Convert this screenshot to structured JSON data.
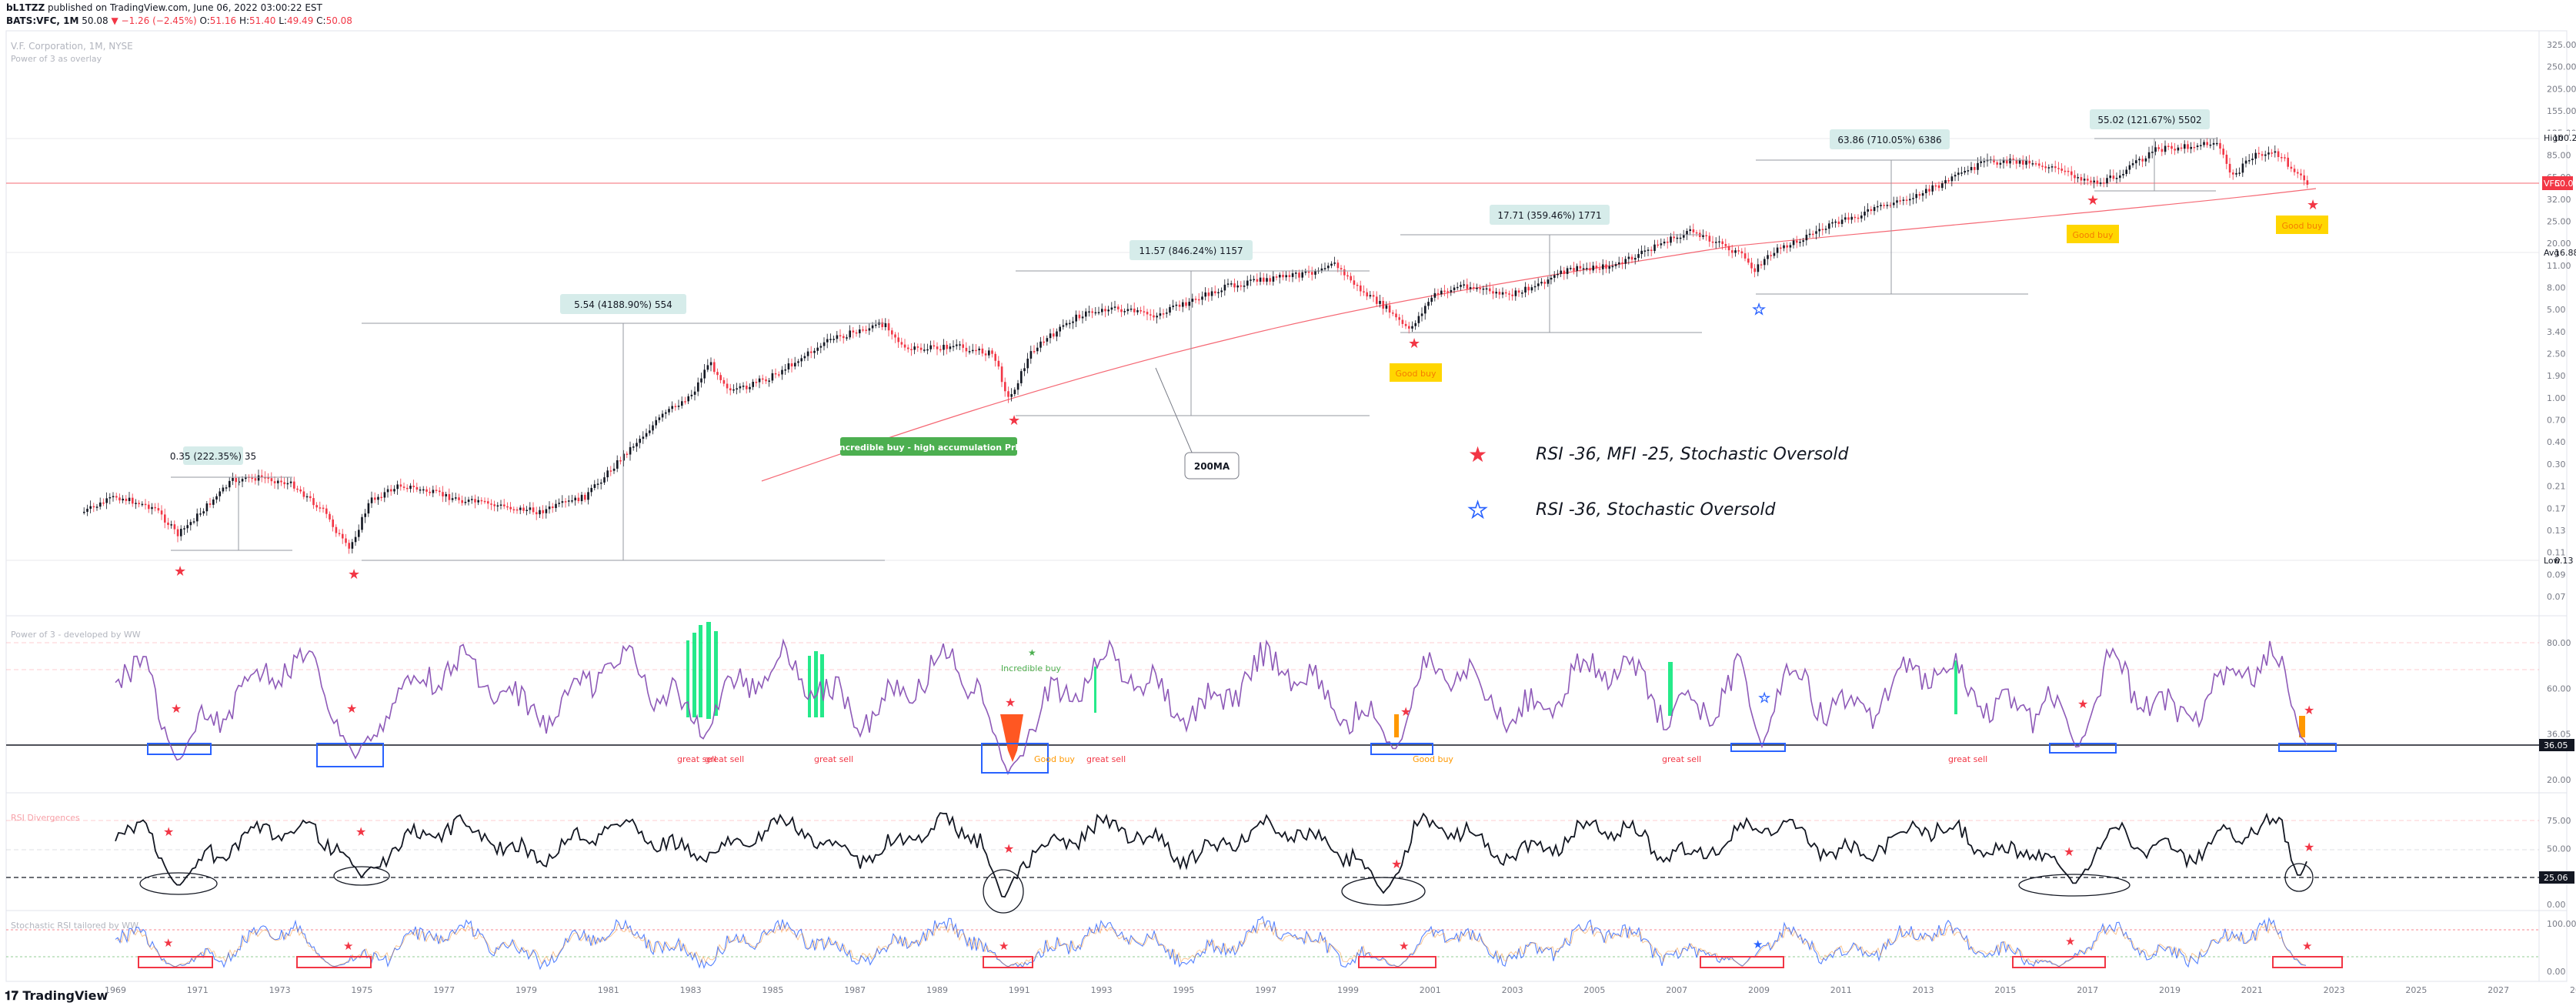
{
  "header": {
    "publisher": "bL1TZZ",
    "published_text": "published on TradingView.com, June 06, 2022 03:00:22 EST",
    "symbol": "BATS:VFC, 1M",
    "last": "50.08",
    "change": "−1.26 (−2.45%)",
    "open_label": "O:",
    "open": "51.16",
    "high_label": "H:",
    "high": "51.40",
    "low_label": "L:",
    "low": "49.49",
    "close_label": "C:",
    "close": "50.08"
  },
  "main_pane": {
    "title": "V.F. Corporation, 1M, NYSE",
    "subtitle": "Power of 3 as overlay",
    "price_axis": [
      "325.00",
      "250.00",
      "205.00",
      "155.00",
      "125.00",
      "85.00",
      "65.00",
      "32.00",
      "25.00",
      "20.00",
      "11.00",
      "8.00",
      "5.00",
      "3.40",
      "2.50",
      "1.90",
      "1.00",
      "0.70",
      "0.40",
      "0.30",
      "0.21",
      "0.17",
      "0.13",
      "0.11",
      "0.09",
      "0.07"
    ],
    "high_tag": {
      "label": "High",
      "value": "100.25"
    },
    "price_tag": {
      "label": "VFC",
      "value": "50.08"
    },
    "avg_tag": {
      "label": "Avg",
      "value": "16.88"
    },
    "low_tag": {
      "label": "Low",
      "value": "0.13"
    },
    "measures": [
      "0.35 (222.35%) 35",
      "5.54 (4188.90%) 554",
      "11.57 (846.24%) 1157",
      "17.71 (359.46%) 1771",
      "63.86 (710.05%) 6386",
      "55.02 (121.67%) 5502"
    ],
    "good_buy": "Good buy",
    "incredible_buy_note": "Incredible buy - high accumulation Prb",
    "ma_label": "200MA",
    "legend_red": "RSI -36, MFI -25, Stochastic Oversold",
    "legend_blue": "RSI -36, Stochastic Oversold"
  },
  "pane_p3": {
    "title": "Power of 3 - developed by WW",
    "axis": [
      "80.00",
      "60.00",
      "36.05",
      "20.00"
    ],
    "value_tag": "36.05",
    "incredible_buy": "Incredible buy",
    "great_sell": "great sell",
    "good_buy": "Good buy"
  },
  "pane_rsi": {
    "title": "RSI Divergences",
    "axis": [
      "75.00",
      "50.00",
      "25.06",
      "0.00"
    ],
    "value_tag": "25.06"
  },
  "pane_stoch": {
    "title": "Stochastic RSI tailored by WW",
    "axis": [
      "100.00",
      "0.00"
    ]
  },
  "time_axis": [
    "1969",
    "1971",
    "1973",
    "1975",
    "1977",
    "1979",
    "1981",
    "1983",
    "1985",
    "1987",
    "1989",
    "1991",
    "1993",
    "1995",
    "1997",
    "1999",
    "2001",
    "2003",
    "2005",
    "2007",
    "2009",
    "2011",
    "2013",
    "2015",
    "2017",
    "2019",
    "2021",
    "2023",
    "2025",
    "2027",
    "2021"
  ],
  "brand": "TradingView",
  "colors": {
    "up": "#089981",
    "down": "#f23645",
    "accent": "#2962ff",
    "ma": "#f23645",
    "tag_bg": "#d6ecea",
    "good_buy_bg": "#ffd600"
  }
}
